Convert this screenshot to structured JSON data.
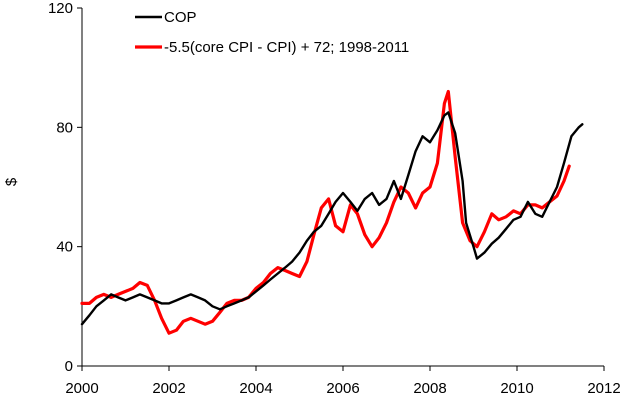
{
  "chart_data": {
    "type": "line",
    "title": "",
    "xlabel": "",
    "ylabel": "$",
    "xlim": [
      2000,
      2012
    ],
    "ylim": [
      0,
      120
    ],
    "xticks": [
      "2000",
      "2002",
      "2004",
      "2006",
      "2008",
      "2010",
      "2012"
    ],
    "yticks": [
      "0",
      "40",
      "80",
      "120"
    ],
    "grid": false,
    "legend_position": "top-left",
    "series": [
      {
        "name": "COP",
        "color": "#000000",
        "points": [
          [
            2000.0,
            14
          ],
          [
            2000.17,
            17
          ],
          [
            2000.33,
            20
          ],
          [
            2000.5,
            22
          ],
          [
            2000.67,
            24
          ],
          [
            2000.83,
            23
          ],
          [
            2001.0,
            22
          ],
          [
            2001.17,
            23
          ],
          [
            2001.33,
            24
          ],
          [
            2001.5,
            23
          ],
          [
            2001.67,
            22
          ],
          [
            2001.83,
            21
          ],
          [
            2002.0,
            21
          ],
          [
            2002.17,
            22
          ],
          [
            2002.33,
            23
          ],
          [
            2002.5,
            24
          ],
          [
            2002.67,
            23
          ],
          [
            2002.83,
            22
          ],
          [
            2003.0,
            20
          ],
          [
            2003.17,
            19
          ],
          [
            2003.33,
            20
          ],
          [
            2003.5,
            21
          ],
          [
            2003.67,
            22
          ],
          [
            2003.83,
            23
          ],
          [
            2004.0,
            25
          ],
          [
            2004.17,
            27
          ],
          [
            2004.33,
            29
          ],
          [
            2004.5,
            31
          ],
          [
            2004.67,
            33
          ],
          [
            2004.83,
            35
          ],
          [
            2005.0,
            38
          ],
          [
            2005.17,
            42
          ],
          [
            2005.33,
            45
          ],
          [
            2005.5,
            47
          ],
          [
            2005.67,
            51
          ],
          [
            2005.83,
            55
          ],
          [
            2006.0,
            58
          ],
          [
            2006.17,
            55
          ],
          [
            2006.33,
            52
          ],
          [
            2006.5,
            56
          ],
          [
            2006.67,
            58
          ],
          [
            2006.83,
            54
          ],
          [
            2007.0,
            56
          ],
          [
            2007.17,
            62
          ],
          [
            2007.33,
            56
          ],
          [
            2007.5,
            64
          ],
          [
            2007.67,
            72
          ],
          [
            2007.83,
            77
          ],
          [
            2008.0,
            75
          ],
          [
            2008.17,
            79
          ],
          [
            2008.33,
            84
          ],
          [
            2008.42,
            85
          ],
          [
            2008.58,
            78
          ],
          [
            2008.75,
            62
          ],
          [
            2008.83,
            48
          ],
          [
            2009.0,
            40
          ],
          [
            2009.08,
            36
          ],
          [
            2009.25,
            38
          ],
          [
            2009.42,
            41
          ],
          [
            2009.58,
            43
          ],
          [
            2009.75,
            46
          ],
          [
            2009.92,
            49
          ],
          [
            2010.08,
            50
          ],
          [
            2010.25,
            55
          ],
          [
            2010.42,
            51
          ],
          [
            2010.58,
            50
          ],
          [
            2010.75,
            55
          ],
          [
            2010.92,
            60
          ],
          [
            2011.08,
            68
          ],
          [
            2011.25,
            77
          ],
          [
            2011.42,
            80
          ],
          [
            2011.5,
            81
          ]
        ]
      },
      {
        "name": "-5.5(core CPI - CPI) + 72; 1998-2011",
        "color": "#ff0000",
        "points": [
          [
            2000.0,
            21
          ],
          [
            2000.17,
            21
          ],
          [
            2000.33,
            23
          ],
          [
            2000.5,
            24
          ],
          [
            2000.67,
            23
          ],
          [
            2000.83,
            24
          ],
          [
            2001.0,
            25
          ],
          [
            2001.17,
            26
          ],
          [
            2001.33,
            28
          ],
          [
            2001.5,
            27
          ],
          [
            2001.67,
            22
          ],
          [
            2001.83,
            16
          ],
          [
            2002.0,
            11
          ],
          [
            2002.17,
            12
          ],
          [
            2002.33,
            15
          ],
          [
            2002.5,
            16
          ],
          [
            2002.67,
            15
          ],
          [
            2002.83,
            14
          ],
          [
            2003.0,
            15
          ],
          [
            2003.17,
            18
          ],
          [
            2003.33,
            21
          ],
          [
            2003.5,
            22
          ],
          [
            2003.67,
            22
          ],
          [
            2003.83,
            23
          ],
          [
            2004.0,
            26
          ],
          [
            2004.17,
            28
          ],
          [
            2004.33,
            31
          ],
          [
            2004.5,
            33
          ],
          [
            2004.67,
            32
          ],
          [
            2004.83,
            31
          ],
          [
            2005.0,
            30
          ],
          [
            2005.17,
            35
          ],
          [
            2005.33,
            44
          ],
          [
            2005.5,
            53
          ],
          [
            2005.67,
            56
          ],
          [
            2005.83,
            47
          ],
          [
            2006.0,
            45
          ],
          [
            2006.17,
            54
          ],
          [
            2006.33,
            51
          ],
          [
            2006.5,
            44
          ],
          [
            2006.67,
            40
          ],
          [
            2006.83,
            43
          ],
          [
            2007.0,
            48
          ],
          [
            2007.17,
            55
          ],
          [
            2007.33,
            60
          ],
          [
            2007.5,
            58
          ],
          [
            2007.67,
            53
          ],
          [
            2007.83,
            58
          ],
          [
            2008.0,
            60
          ],
          [
            2008.17,
            68
          ],
          [
            2008.33,
            88
          ],
          [
            2008.42,
            92
          ],
          [
            2008.58,
            70
          ],
          [
            2008.75,
            48
          ],
          [
            2008.92,
            42
          ],
          [
            2009.08,
            40
          ],
          [
            2009.25,
            45
          ],
          [
            2009.42,
            51
          ],
          [
            2009.58,
            49
          ],
          [
            2009.75,
            50
          ],
          [
            2009.92,
            52
          ],
          [
            2010.08,
            51
          ],
          [
            2010.25,
            54
          ],
          [
            2010.42,
            54
          ],
          [
            2010.58,
            53
          ],
          [
            2010.75,
            55
          ],
          [
            2010.92,
            57
          ],
          [
            2011.08,
            62
          ],
          [
            2011.2,
            67
          ]
        ]
      }
    ]
  }
}
